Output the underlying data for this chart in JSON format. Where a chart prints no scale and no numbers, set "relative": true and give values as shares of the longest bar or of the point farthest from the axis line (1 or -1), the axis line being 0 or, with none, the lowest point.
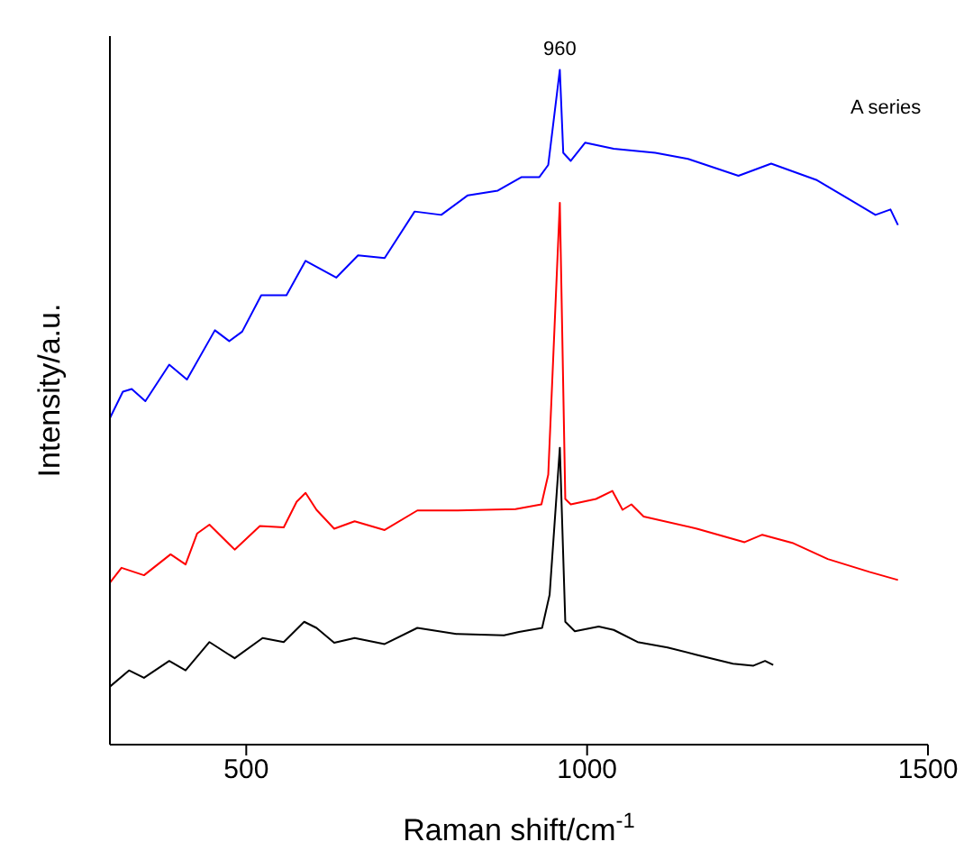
{
  "chart_data": {
    "type": "line",
    "xlabel": "Raman shift/cm$^{-1}$",
    "ylabel": "Intensity/a.u.",
    "relative": true,
    "xlim": [
      300,
      1500
    ],
    "xticks": [
      500,
      1000,
      1500
    ],
    "marker": "none",
    "annotations": [
      {
        "text": "960",
        "x": 960,
        "y": 1
      },
      "A series"
    ],
    "series": [
      {
        "color": "#0000ff",
        "x": [
          300,
          319,
          332,
          352,
          387,
          413,
          454,
          475,
          494,
          522,
          559,
          587,
          632,
          664,
          703,
          747,
          786,
          825,
          869,
          904,
          930,
          943,
          960,
          965,
          976,
          997,
          1039,
          1100,
          1148,
          1222,
          1270,
          1336,
          1388,
          1423,
          1445,
          1456
        ],
        "values": [
          0.484,
          0.523,
          0.527,
          0.509,
          0.563,
          0.541,
          0.614,
          0.598,
          0.612,
          0.666,
          0.666,
          0.717,
          0.692,
          0.725,
          0.721,
          0.79,
          0.785,
          0.814,
          0.821,
          0.841,
          0.841,
          0.859,
          1,
          0.877,
          0.865,
          0.892,
          0.883,
          0.877,
          0.868,
          0.843,
          0.861,
          0.837,
          0.806,
          0.785,
          0.793,
          0.77
        ]
      },
      {
        "color": "#ff0000",
        "x": [
          300,
          317,
          350,
          389,
          411,
          428,
          446,
          483,
          520,
          555,
          574,
          587,
          603,
          629,
          659,
          703,
          751,
          808,
          895,
          933,
          943,
          960,
          968,
          976,
          1013,
          1037,
          1052,
          1065,
          1083,
          1161,
          1231,
          1257,
          1301,
          1353,
          1414,
          1456
        ],
        "values": [
          0.24,
          0.262,
          0.251,
          0.282,
          0.267,
          0.313,
          0.326,
          0.289,
          0.324,
          0.322,
          0.36,
          0.373,
          0.348,
          0.32,
          0.331,
          0.318,
          0.347,
          0.347,
          0.349,
          0.356,
          0.4,
          0.803,
          0.364,
          0.356,
          0.364,
          0.376,
          0.348,
          0.356,
          0.338,
          0.32,
          0.3,
          0.311,
          0.299,
          0.275,
          0.256,
          0.244
        ]
      },
      {
        "color": "#000000",
        "x": [
          300,
          328,
          350,
          387,
          411,
          446,
          483,
          524,
          555,
          585,
          603,
          629,
          659,
          703,
          751,
          808,
          878,
          900,
          934,
          945,
          960,
          968,
          982,
          1017,
          1039,
          1074,
          1118,
          1161,
          1214,
          1244,
          1261,
          1273
        ],
        "values": [
          0.086,
          0.11,
          0.099,
          0.124,
          0.11,
          0.152,
          0.128,
          0.158,
          0.152,
          0.182,
          0.173,
          0.151,
          0.158,
          0.149,
          0.173,
          0.164,
          0.162,
          0.167,
          0.173,
          0.222,
          0.44,
          0.182,
          0.168,
          0.175,
          0.17,
          0.152,
          0.144,
          0.133,
          0.12,
          0.117,
          0.124,
          0.118
        ]
      }
    ]
  }
}
